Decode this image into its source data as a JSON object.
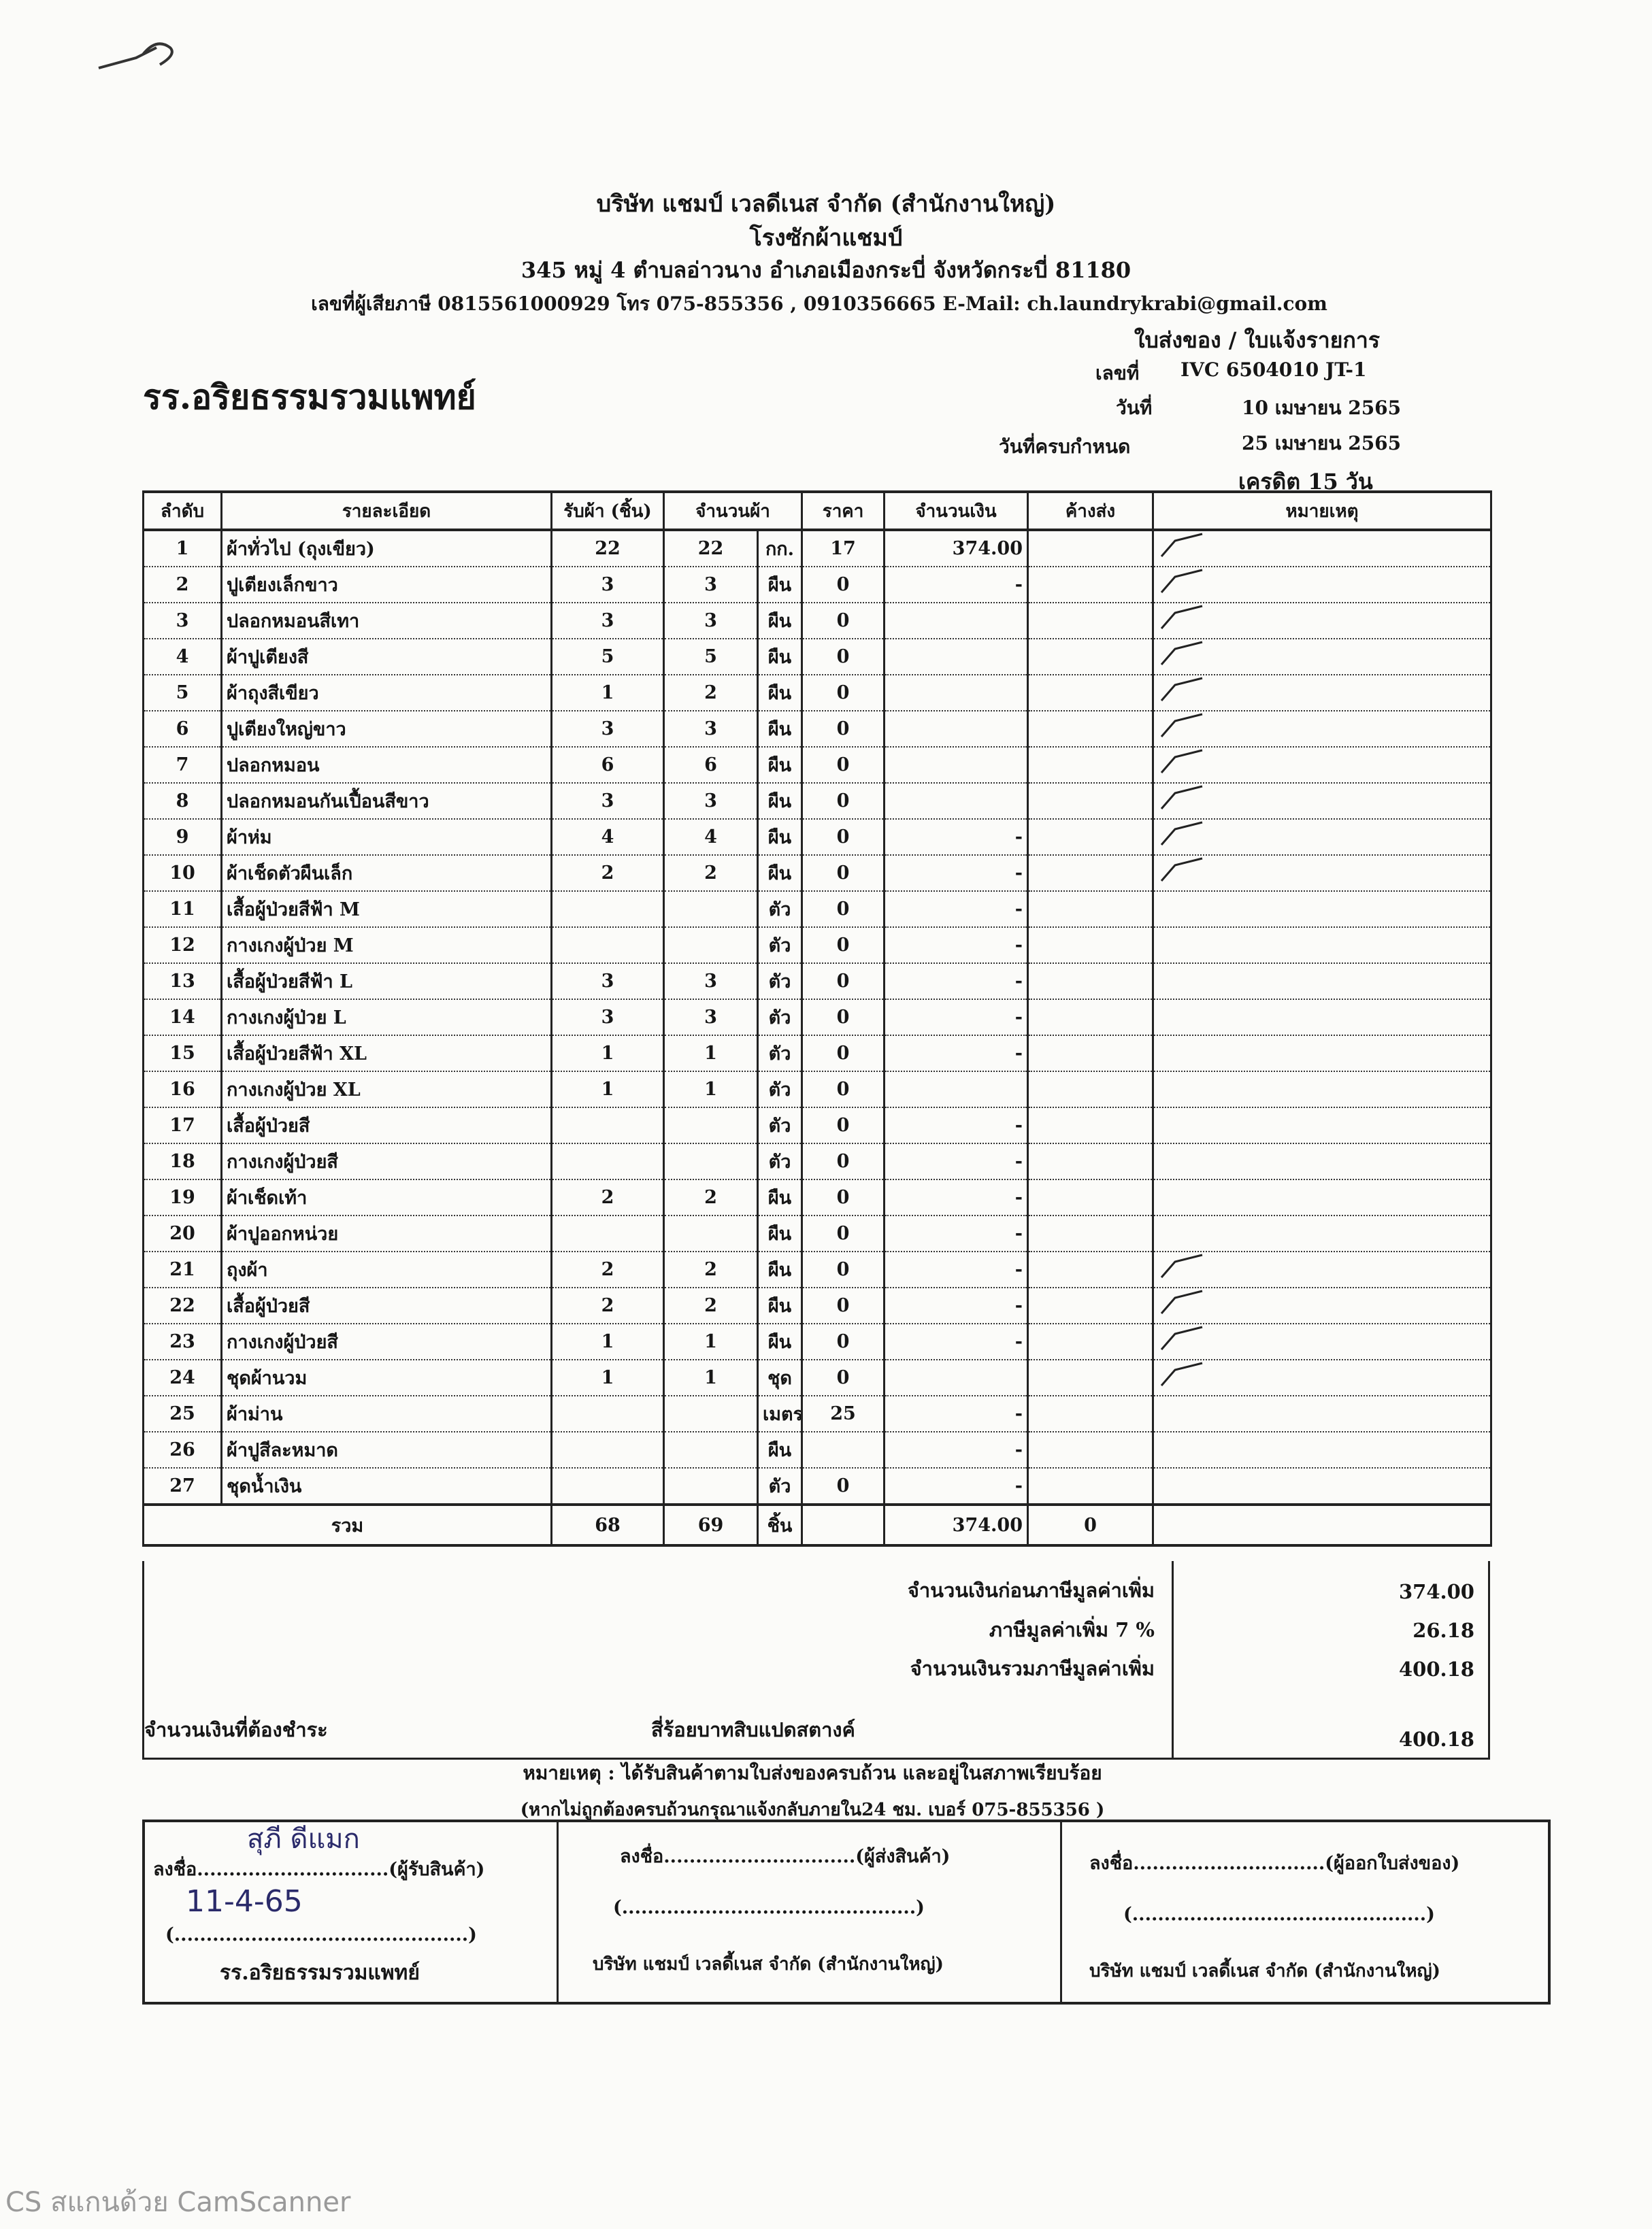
{
  "company": {
    "name": "บริษัท แชมป์ เวลดีเนส จำกัด (สำนักงานใหญ่)",
    "factory": "โรงซักผ้าแชมป์",
    "address": "345 หมู่ 4 ตำบลอ่าวนาง อำเภอเมืองกระบี่ จังหวัดกระบี่ 81180",
    "contact": "เลขที่ผู้เสียภาษี 0815561000929 โทร 075-855356 , 0910356665  E-Mail: ch.laundrykrabi@gmail.com"
  },
  "doc": {
    "type": "ใบส่งของ / ใบแจ้งรายการ",
    "no_label": "เลขที่",
    "no_value": "IVC 6504010 JT-1",
    "date_label": "วันที่",
    "date_value": "10 เมษายน 2565",
    "due_label": "วันที่ครบกำหนด",
    "due_value": "25 เมษายน 2565",
    "credit": "เครดิต 15 วัน"
  },
  "customer": "รร.อริยธรรมรวมแพทย์",
  "table": {
    "headers": [
      "ลำดับ",
      "รายละเอียด",
      "รับผ้า (ชิ้น)",
      "จำนวนผ้า",
      "",
      "ราคา",
      "จำนวนเงิน",
      "ค้างส่ง",
      "หมายเหตุ"
    ],
    "rows": [
      [
        "1",
        "ผ้าทั่วไป (ถุงเขียว)",
        "22",
        "22",
        "กก.",
        "17",
        "374.00",
        "",
        true
      ],
      [
        "2",
        "ปูเตียงเล็กขาว",
        "3",
        "3",
        "ผืน",
        "0",
        "-",
        "",
        true
      ],
      [
        "3",
        "ปลอกหมอนสีเทา",
        "3",
        "3",
        "ผืน",
        "0",
        "",
        "",
        true
      ],
      [
        "4",
        "ผ้าปูเตียงสี",
        "5",
        "5",
        "ผืน",
        "0",
        "",
        "",
        true
      ],
      [
        "5",
        "ผ้าถุงสีเขียว",
        "1",
        "2",
        "ผืน",
        "0",
        "",
        "",
        true
      ],
      [
        "6",
        "ปูเตียงใหญ่ขาว",
        "3",
        "3",
        "ผืน",
        "0",
        "",
        "",
        true
      ],
      [
        "7",
        "ปลอกหมอน",
        "6",
        "6",
        "ผืน",
        "0",
        "",
        "",
        true
      ],
      [
        "8",
        "ปลอกหมอนกันเปื้อนสีขาว",
        "3",
        "3",
        "ผืน",
        "0",
        "",
        "",
        true
      ],
      [
        "9",
        "ผ้าห่ม",
        "4",
        "4",
        "ผืน",
        "0",
        "-",
        "",
        true
      ],
      [
        "10",
        "ผ้าเช็ดตัวผืนเล็ก",
        "2",
        "2",
        "ผืน",
        "0",
        "-",
        "",
        true
      ],
      [
        "11",
        "เสื้อผู้ป่วยสีฟ้า M",
        "",
        "",
        "ตัว",
        "0",
        "-",
        "",
        false
      ],
      [
        "12",
        "กางเกงผู้ป่วย M",
        "",
        "",
        "ตัว",
        "0",
        "-",
        "",
        false
      ],
      [
        "13",
        "เสื้อผู้ป่วยสีฟ้า L",
        "3",
        "3",
        "ตัว",
        "0",
        "-",
        "",
        false
      ],
      [
        "14",
        "กางเกงผู้ป่วย L",
        "3",
        "3",
        "ตัว",
        "0",
        "-",
        "",
        false
      ],
      [
        "15",
        "เสื้อผู้ป่วยสีฟ้า XL",
        "1",
        "1",
        "ตัว",
        "0",
        "-",
        "",
        false
      ],
      [
        "16",
        "กางเกงผู้ป่วย XL",
        "1",
        "1",
        "ตัว",
        "0",
        "",
        "",
        false
      ],
      [
        "17",
        "เสื้อผู้ป่วยสี",
        "",
        "",
        "ตัว",
        "0",
        "-",
        "",
        false
      ],
      [
        "18",
        "กางเกงผู้ป่วยสี",
        "",
        "",
        "ตัว",
        "0",
        "-",
        "",
        false
      ],
      [
        "19",
        "ผ้าเช็ดเท้า",
        "2",
        "2",
        "ผืน",
        "0",
        "-",
        "",
        false
      ],
      [
        "20",
        "ผ้าปูออกหน่วย",
        "",
        "",
        "ผืน",
        "0",
        "-",
        "",
        false
      ],
      [
        "21",
        "ถุงผ้า",
        "2",
        "2",
        "ผืน",
        "0",
        "-",
        "",
        true
      ],
      [
        "22",
        "เสื้อผู้ป่วยสี",
        "2",
        "2",
        "ผืน",
        "0",
        "-",
        "",
        true
      ],
      [
        "23",
        "กางเกงผู้ป่วยสี",
        "1",
        "1",
        "ผืน",
        "0",
        "-",
        "",
        true
      ],
      [
        "24",
        "ชุดผ้านวม",
        "1",
        "1",
        "ชุด",
        "0",
        "",
        "",
        true
      ],
      [
        "25",
        "ผ้าม่าน",
        "",
        "",
        "เมตร",
        "25",
        "-",
        "",
        false
      ],
      [
        "26",
        "ผ้าปูสีละหมาด",
        "",
        "",
        "ผืน",
        "",
        "-",
        "",
        false
      ],
      [
        "27",
        "ชุดน้ำเงิน",
        "",
        "",
        "ตัว",
        "0",
        "-",
        "",
        false
      ]
    ],
    "total": {
      "label": "รวม",
      "received": "68",
      "qty": "69",
      "unit": "ชิ้น",
      "amount": "374.00",
      "outstanding": "0"
    }
  },
  "summary": {
    "subtotal_label": "จำนวนเงินก่อนภาษีมูลค่าเพิ่ม",
    "subtotal": "374.00",
    "vat_label": "ภาษีมูลค่าเพิ่ม 7 %",
    "vat": "26.18",
    "grand_label": "จำนวนเงินรวมภาษีมูลค่าเพิ่ม",
    "grand": "400.18",
    "payable_label": "จำนวนเงินที่ต้องชำระ",
    "payable_words": "สี่ร้อยบาทสิบแปดสตางค์",
    "payable": "400.18"
  },
  "notes": {
    "line1": "หมายเหตุ : ได้รับสินค้าตามใบส่งของครบถ้วน และอยู่ในสภาพเรียบร้อย",
    "line2": "(หากไม่ถูกต้องครบถ้วนกรุณาแจ้งกลับภายใน24 ชม.  เบอร์ 075-855356 )"
  },
  "signatures": [
    {
      "label": "ลงชื่อ..............................(ผู้รับสินค้า)",
      "handwritten_name": "สุภี ดีแมก",
      "handwritten_date": "11-4-65",
      "blank": "(..............................................)",
      "org": "รร.อริยธรรมรวมแพทย์"
    },
    {
      "label": "ลงชื่อ..............................(ผู้ส่งสินค้า)",
      "blank": "(..............................................)",
      "org": "บริษัท แชมป์ เวลดี้เนส จำกัด (สำนักงานใหญ่)"
    },
    {
      "label": "ลงชื่อ..............................(ผู้ออกใบส่งของ)",
      "blank": "(..............................................)",
      "org": "บริษัท แชมป์ เวลดี้เนส จำกัด (สำนักงานใหญ่)"
    }
  ],
  "watermark": "CS สแกนด้วย CamScanner"
}
